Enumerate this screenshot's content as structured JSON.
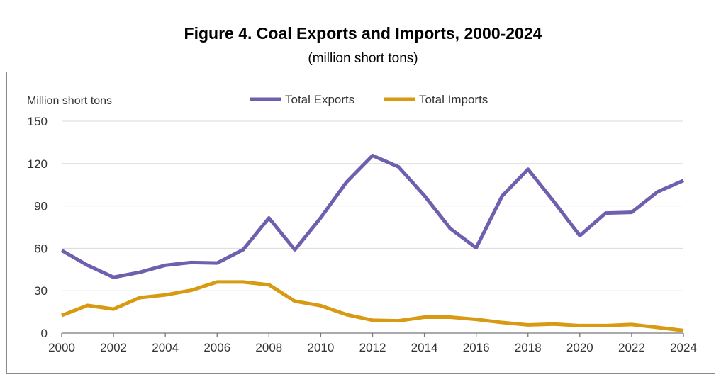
{
  "title": "Figure 4. Coal Exports and Imports, 2000-2024",
  "subtitle": "(million short tons)",
  "chart_data": {
    "type": "line",
    "title": "Figure 4. Coal Exports and Imports, 2000-2024",
    "subtitle": "(million short tons)",
    "ylabel": "Million short tons",
    "xlabel": "",
    "x": [
      2000,
      2001,
      2002,
      2003,
      2004,
      2005,
      2006,
      2007,
      2008,
      2009,
      2010,
      2011,
      2012,
      2013,
      2014,
      2015,
      2016,
      2017,
      2018,
      2019,
      2020,
      2021,
      2022,
      2023,
      2024
    ],
    "xticks": [
      "2000",
      "2002",
      "2004",
      "2006",
      "2008",
      "2010",
      "2012",
      "2014",
      "2016",
      "2018",
      "2020",
      "2022",
      "2024"
    ],
    "yticks": [
      "0",
      "30",
      "60",
      "90",
      "120",
      "150"
    ],
    "ylim": [
      0,
      150
    ],
    "xlim": [
      2000,
      2024
    ],
    "grid": "horizontal",
    "legend": "top-center",
    "series": [
      {
        "name": "Total Exports",
        "color": "#6f5fae",
        "values": [
          58.5,
          48,
          39.5,
          43,
          48,
          50,
          49.6,
          59,
          81.5,
          59,
          81.7,
          107,
          125.7,
          117.7,
          97.3,
          74,
          60.3,
          97,
          116,
          93,
          69,
          85,
          85.5,
          100,
          108
        ]
      },
      {
        "name": "Total Imports",
        "color": "#d89a12",
        "values": [
          12.5,
          19.6,
          17,
          25,
          27,
          30.3,
          36.2,
          36.2,
          34.2,
          22.6,
          19.4,
          13.1,
          9.1,
          8.7,
          11.3,
          11.3,
          9.7,
          7.5,
          5.8,
          6.4,
          5.3,
          5.3,
          6.1,
          4,
          1.8
        ]
      }
    ]
  }
}
